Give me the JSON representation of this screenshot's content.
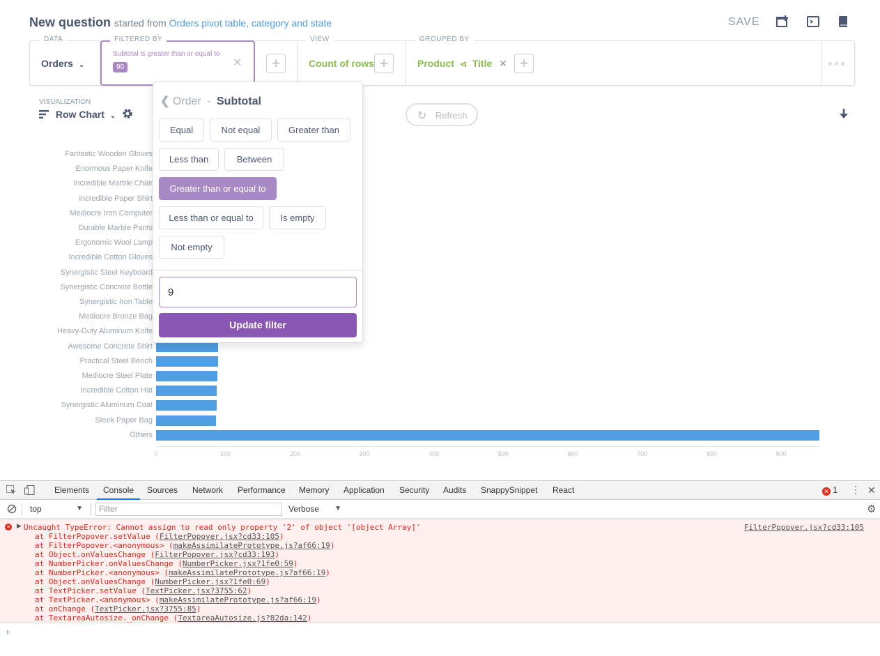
{
  "header": {
    "title": "New question",
    "started_prefix": "started from",
    "started_link": "Orders pivot table, category and state",
    "save_label": "SAVE"
  },
  "query_bar": {
    "data_label": "DATA",
    "data_value": "Orders",
    "filtered_label": "FILTERED BY",
    "filter_text": "Subtotal is greater than or equal to",
    "filter_value": "90",
    "view_label": "VIEW",
    "view_value": "Count of rows",
    "grouped_label": "GROUPED BY",
    "group_entity": "Product",
    "group_field": "Title"
  },
  "visualization": {
    "label": "VISUALIZATION",
    "type": "Row Chart",
    "refresh_label": "Refresh"
  },
  "popover": {
    "entity": "Order",
    "separator": "-",
    "field": "Subtotal",
    "operators": [
      "Equal",
      "Not equal",
      "Greater than",
      "Less than",
      "Between",
      "Greater than or equal to",
      "Less than or equal to",
      "Is empty",
      "Not empty"
    ],
    "active_operator": "Greater than or equal to",
    "input_value": "9",
    "update_label": "Update filter"
  },
  "chart_data": {
    "type": "bar",
    "orientation": "horizontal",
    "categories": [
      "Fantastic Wooden Gloves",
      "Enormous Paper Knife",
      "Incredible Marble Chair",
      "Incredible Paper Shirt",
      "Mediocre Iron Computer",
      "Durable Marble Pants",
      "Ergonomic Wool Lamp",
      "Incredible Cotton Gloves",
      "Synergistic Steel Keyboard",
      "Synergistic Concrete Bottle",
      "Synergistic Iron Table",
      "Mediocre Bronze Bag",
      "Heavy-Duty Aluminum Knife",
      "Awesome Concrete Shirt",
      "Practical Steel Bench",
      "Mediocre Steel Plate",
      "Incredible Cotton Hat",
      "Synergistic Aluminum Coat",
      "Sleek Paper Bag",
      "Others"
    ],
    "values": [
      null,
      null,
      null,
      null,
      null,
      null,
      null,
      null,
      null,
      null,
      null,
      null,
      null,
      89,
      89,
      88,
      87,
      87,
      86,
      955
    ],
    "xticks": [
      "0",
      "100",
      "200",
      "300",
      "400",
      "500",
      "600",
      "700",
      "800",
      "900"
    ],
    "xlim": [
      0,
      955
    ],
    "color": "#509ee3"
  },
  "devtools": {
    "tabs": [
      "Elements",
      "Console",
      "Sources",
      "Network",
      "Performance",
      "Memory",
      "Application",
      "Security",
      "Audits",
      "SnappySnippet",
      "React"
    ],
    "active_tab": "Console",
    "error_count": "1",
    "context": "top",
    "filter_placeholder": "Filter",
    "level": "Verbose",
    "error_message": "Uncaught TypeError: Cannot assign to read only property '2' of object '[object Array]'",
    "error_source": "FilterPopover.jsx?cd33:105",
    "stack": [
      {
        "fn": "at FilterPopover.setValue (",
        "loc": "FilterPopover.jsx?cd33:105",
        "end": ")"
      },
      {
        "fn": "at FilterPopover.<anonymous> (",
        "loc": "makeAssimilatePrototype.js?af66:19",
        "end": ")"
      },
      {
        "fn": "at Object.onValuesChange (",
        "loc": "FilterPopover.jsx?cd33:193",
        "end": ")"
      },
      {
        "fn": "at NumberPicker.onValuesChange (",
        "loc": "NumberPicker.jsx?1fe0:59",
        "end": ")"
      },
      {
        "fn": "at NumberPicker.<anonymous> (",
        "loc": "makeAssimilatePrototype.js?af66:19",
        "end": ")"
      },
      {
        "fn": "at Object.onValuesChange (",
        "loc": "NumberPicker.jsx?1fe0:69",
        "end": ")"
      },
      {
        "fn": "at TextPicker.setValue (",
        "loc": "TextPicker.jsx?3755:62",
        "end": ")"
      },
      {
        "fn": "at TextPicker.<anonymous> (",
        "loc": "makeAssimilatePrototype.js?af66:19",
        "end": ")"
      },
      {
        "fn": "at onChange (",
        "loc": "TextPicker.jsx?3755:85",
        "end": ")"
      },
      {
        "fn": "at TextareaAutosize._onChange (",
        "loc": "TextareaAutosize.js?82da:142",
        "end": ")"
      }
    ]
  }
}
